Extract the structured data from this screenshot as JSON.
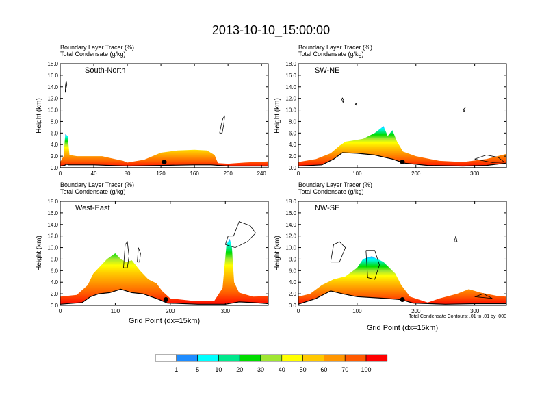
{
  "title": "2013-10-10_15:00:00",
  "colors": {
    "scale": [
      "#ffffff",
      "#1e8cff",
      "#00ffff",
      "#00e88c",
      "#00dc00",
      "#a0e632",
      "#ffff00",
      "#ffc800",
      "#ff9600",
      "#ff5a00",
      "#ff0000"
    ],
    "terrain": "#000000",
    "contour": "#000000"
  },
  "panels": [
    {
      "header_1": "Boundary Layer Tracer   (%)",
      "header_2": "Total Condensate   (g/kg)",
      "label": "South-North",
      "ylabel": "Height (km)",
      "xlabel": ""
    },
    {
      "header_1": "Boundary Layer Tracer   (%)",
      "header_2": "Total Condensate   (g/kg)",
      "label": "SW-NE",
      "ylabel": "Height (km)",
      "xlabel": ""
    },
    {
      "header_1": "Boundary Layer Tracer   (%)",
      "header_2": "Total Condensate   (g/kg)",
      "label": "West-East",
      "ylabel": "Height (km)",
      "xlabel": "Grid Point (dx=15km)"
    },
    {
      "header_1": "Boundary Layer Tracer   (%)",
      "header_2": "Total Condensate   (g/kg)",
      "label": "NW-SE",
      "ylabel": "Height (km)",
      "xlabel": "Grid Point (dx=15km)",
      "note": "Total Condensate Contours: .01 to .01 by .000"
    }
  ],
  "colorbar": {
    "labels": [
      "1",
      "5",
      "10",
      "20",
      "30",
      "40",
      "50",
      "60",
      "70",
      "100"
    ]
  },
  "chart_data": [
    {
      "type": "heatmap",
      "title": "South-North",
      "ylabel": "Height (km)",
      "xlim": [
        0,
        248
      ],
      "ylim": [
        0,
        18
      ],
      "yticks": [
        "0.0",
        "2.0",
        "4.0",
        "6.0",
        "8.0",
        "10.0",
        "12.0",
        "14.0",
        "16.0",
        "18.0"
      ],
      "xticks": [
        0,
        40,
        80,
        120,
        160,
        200,
        240
      ],
      "terrain": [
        [
          0,
          0.3
        ],
        [
          5,
          0.4
        ],
        [
          8,
          0.6
        ],
        [
          10,
          0.5
        ],
        [
          40,
          0.5
        ],
        [
          80,
          0.3
        ],
        [
          120,
          0.4
        ],
        [
          160,
          0.5
        ],
        [
          180,
          0.5
        ],
        [
          200,
          0.3
        ],
        [
          248,
          0.3
        ]
      ],
      "top": [
        [
          0,
          1.0
        ],
        [
          4,
          2.0
        ],
        [
          6,
          5.8
        ],
        [
          9,
          5.5
        ],
        [
          11,
          2.2
        ],
        [
          20,
          2.0
        ],
        [
          50,
          2.0
        ],
        [
          65,
          1.5
        ],
        [
          75,
          1.2
        ],
        [
          80,
          0.9
        ],
        [
          100,
          1.4
        ],
        [
          120,
          2.6
        ],
        [
          140,
          3.0
        ],
        [
          160,
          3.1
        ],
        [
          175,
          3.0
        ],
        [
          184,
          2.2
        ],
        [
          188,
          0.8
        ],
        [
          200,
          0.7
        ],
        [
          220,
          0.9
        ],
        [
          248,
          1.1
        ]
      ],
      "contours": [
        [
          [
            6,
            13.0
          ],
          [
            8,
            14.5
          ],
          [
            7,
            15.0
          ],
          [
            6,
            14.0
          ],
          [
            6,
            13.0
          ]
        ],
        [
          [
            190,
            6.0
          ],
          [
            192,
            7.5
          ],
          [
            194,
            8.5
          ],
          [
            196,
            9.0
          ],
          [
            195,
            7.5
          ],
          [
            193,
            6.0
          ],
          [
            190,
            6.0
          ]
        ]
      ],
      "marker": [
        124,
        1.0
      ]
    },
    {
      "type": "heatmap",
      "title": "SW-NE",
      "ylabel": "Height (km)",
      "xlim": [
        0,
        354
      ],
      "ylim": [
        0,
        18
      ],
      "yticks": [
        "0.0",
        "2.0",
        "4.0",
        "6.0",
        "8.0",
        "10.0",
        "12.0",
        "14.0",
        "16.0",
        "18.0"
      ],
      "xticks": [
        0,
        100,
        200,
        300
      ],
      "terrain": [
        [
          0,
          0.3
        ],
        [
          40,
          0.5
        ],
        [
          60,
          1.5
        ],
        [
          75,
          2.6
        ],
        [
          100,
          2.5
        ],
        [
          130,
          2.2
        ],
        [
          160,
          1.5
        ],
        [
          180,
          0.8
        ],
        [
          220,
          0.4
        ],
        [
          280,
          0.3
        ],
        [
          320,
          0.4
        ],
        [
          354,
          0.8
        ]
      ],
      "top": [
        [
          0,
          1.0
        ],
        [
          30,
          1.5
        ],
        [
          55,
          2.5
        ],
        [
          70,
          3.8
        ],
        [
          80,
          4.5
        ],
        [
          110,
          5.0
        ],
        [
          130,
          6.0
        ],
        [
          145,
          7.2
        ],
        [
          152,
          5.5
        ],
        [
          160,
          6.5
        ],
        [
          168,
          4.5
        ],
        [
          178,
          2.8
        ],
        [
          200,
          2.0
        ],
        [
          240,
          1.2
        ],
        [
          280,
          1.0
        ],
        [
          320,
          1.5
        ],
        [
          354,
          2.4
        ]
      ],
      "contours": [
        [
          [
            75,
            12.1
          ],
          [
            77,
            11.6
          ],
          [
            76,
            11.3
          ],
          [
            74,
            11.8
          ],
          [
            75,
            12.1
          ]
        ],
        [
          [
            98,
            11.2
          ],
          [
            99,
            10.8
          ],
          [
            97,
            10.9
          ],
          [
            98,
            11.2
          ]
        ],
        [
          [
            280,
            10.0
          ],
          [
            284,
            10.4
          ],
          [
            282,
            9.7
          ],
          [
            280,
            10.0
          ]
        ],
        [
          [
            300,
            1.5
          ],
          [
            320,
            2.2
          ],
          [
            340,
            1.8
          ],
          [
            350,
            1.0
          ],
          [
            330,
            0.9
          ],
          [
            300,
            1.5
          ]
        ]
      ],
      "marker": [
        177,
        1.0
      ]
    },
    {
      "type": "heatmap",
      "title": "West-East",
      "ylabel": "Height (km)",
      "xlabel": "Grid Point (dx=15km)",
      "xlim": [
        0,
        378
      ],
      "ylim": [
        0,
        18
      ],
      "yticks": [
        "0.0",
        "2.0",
        "4.0",
        "6.0",
        "8.0",
        "10.0",
        "12.0",
        "14.0",
        "16.0",
        "18.0"
      ],
      "xticks": [
        0,
        100,
        200,
        300
      ],
      "terrain": [
        [
          0,
          0.2
        ],
        [
          40,
          0.5
        ],
        [
          55,
          1.5
        ],
        [
          70,
          2.0
        ],
        [
          90,
          2.2
        ],
        [
          110,
          2.8
        ],
        [
          130,
          2.2
        ],
        [
          150,
          2.0
        ],
        [
          175,
          1.2
        ],
        [
          195,
          0.4
        ],
        [
          250,
          0.2
        ],
        [
          300,
          0.2
        ],
        [
          325,
          0.6
        ],
        [
          350,
          0.5
        ],
        [
          378,
          0.3
        ]
      ],
      "top": [
        [
          0,
          1.5
        ],
        [
          30,
          1.8
        ],
        [
          50,
          3.5
        ],
        [
          60,
          5.5
        ],
        [
          70,
          6.5
        ],
        [
          85,
          8.0
        ],
        [
          100,
          9.0
        ],
        [
          110,
          8.0
        ],
        [
          120,
          7.5
        ],
        [
          130,
          7.8
        ],
        [
          145,
          6.0
        ],
        [
          160,
          4.5
        ],
        [
          175,
          3.8
        ],
        [
          185,
          2.5
        ],
        [
          200,
          1.2
        ],
        [
          240,
          0.8
        ],
        [
          280,
          0.8
        ],
        [
          295,
          3.0
        ],
        [
          302,
          10.5
        ],
        [
          308,
          11.5
        ],
        [
          312,
          10.0
        ],
        [
          316,
          4.0
        ],
        [
          325,
          2.2
        ],
        [
          350,
          1.5
        ],
        [
          378,
          1.6
        ]
      ],
      "contours": [
        [
          [
            115,
            6.5
          ],
          [
            118,
            10.5
          ],
          [
            122,
            11.0
          ],
          [
            125,
            8.5
          ],
          [
            122,
            6.5
          ],
          [
            115,
            6.5
          ]
        ],
        [
          [
            140,
            7.5
          ],
          [
            142,
            10.0
          ],
          [
            146,
            9.0
          ],
          [
            144,
            7.5
          ],
          [
            140,
            7.5
          ]
        ],
        [
          [
            300,
            10.5
          ],
          [
            305,
            12.0
          ],
          [
            315,
            12.0
          ],
          [
            325,
            14.5
          ],
          [
            345,
            13.8
          ],
          [
            355,
            12.5
          ],
          [
            340,
            11.0
          ],
          [
            318,
            10.0
          ],
          [
            300,
            10.5
          ]
        ]
      ],
      "marker": [
        192,
        1.0
      ]
    },
    {
      "type": "heatmap",
      "title": "NW-SE",
      "ylabel": "Height (km)",
      "xlabel": "Grid Point (dx=15km)",
      "xlim": [
        0,
        354
      ],
      "ylim": [
        0,
        18
      ],
      "yticks": [
        "0.0",
        "2.0",
        "4.0",
        "6.0",
        "8.0",
        "10.0",
        "12.0",
        "14.0",
        "16.0",
        "18.0"
      ],
      "xticks": [
        0,
        100,
        200,
        300
      ],
      "terrain": [
        [
          0,
          0.2
        ],
        [
          30,
          1.2
        ],
        [
          55,
          2.5
        ],
        [
          75,
          2.0
        ],
        [
          100,
          1.5
        ],
        [
          150,
          1.2
        ],
        [
          175,
          1.0
        ],
        [
          195,
          0.4
        ],
        [
          250,
          0.2
        ],
        [
          300,
          0.3
        ],
        [
          354,
          0.3
        ]
      ],
      "top": [
        [
          0,
          1.5
        ],
        [
          20,
          2.0
        ],
        [
          40,
          3.5
        ],
        [
          60,
          4.5
        ],
        [
          80,
          5.0
        ],
        [
          100,
          6.5
        ],
        [
          110,
          8.0
        ],
        [
          125,
          8.5
        ],
        [
          145,
          7.5
        ],
        [
          165,
          5.5
        ],
        [
          175,
          3.5
        ],
        [
          190,
          1.5
        ],
        [
          220,
          0.5
        ],
        [
          240,
          1.2
        ],
        [
          270,
          2.0
        ],
        [
          290,
          2.8
        ],
        [
          310,
          2.2
        ],
        [
          340,
          1.6
        ],
        [
          354,
          1.5
        ]
      ],
      "contours": [
        [
          [
            55,
            7.5
          ],
          [
            60,
            10.5
          ],
          [
            70,
            11.0
          ],
          [
            80,
            10.0
          ],
          [
            70,
            7.5
          ],
          [
            55,
            7.5
          ]
        ],
        [
          [
            115,
            9.5
          ],
          [
            130,
            9.5
          ],
          [
            138,
            7.0
          ],
          [
            130,
            4.5
          ],
          [
            118,
            4.8
          ],
          [
            115,
            9.5
          ]
        ],
        [
          [
            265,
            11.0
          ],
          [
            268,
            12.0
          ],
          [
            270,
            11.0
          ],
          [
            265,
            11.0
          ]
        ],
        [
          [
            300,
            1.5
          ],
          [
            315,
            2.0
          ],
          [
            330,
            1.2
          ],
          [
            300,
            1.5
          ]
        ]
      ],
      "marker": [
        177,
        1.0
      ]
    }
  ]
}
